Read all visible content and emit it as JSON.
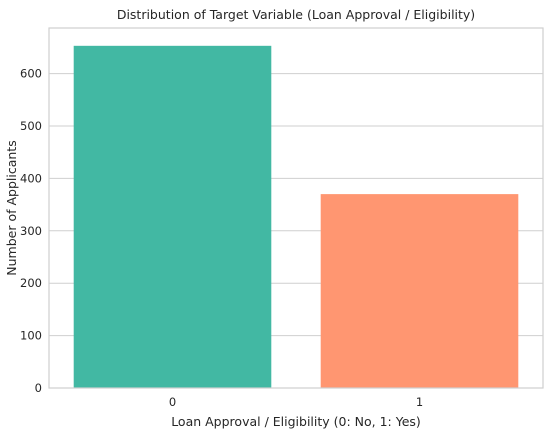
{
  "chart_data": {
    "type": "bar",
    "title": "Distribution of Target Variable (Loan Approval / Eligibility)",
    "xlabel": "Loan Approval / Eligibility (0: No, 1: Yes)",
    "ylabel": "Number of Applicants",
    "categories": [
      "0",
      "1"
    ],
    "values": [
      653,
      370
    ],
    "colors": [
      "#42b8a3",
      "#ff9671"
    ],
    "ylim": [
      0,
      687
    ],
    "yticks": [
      0,
      100,
      200,
      300,
      400,
      500,
      600
    ],
    "grid": true,
    "legend": "none"
  }
}
